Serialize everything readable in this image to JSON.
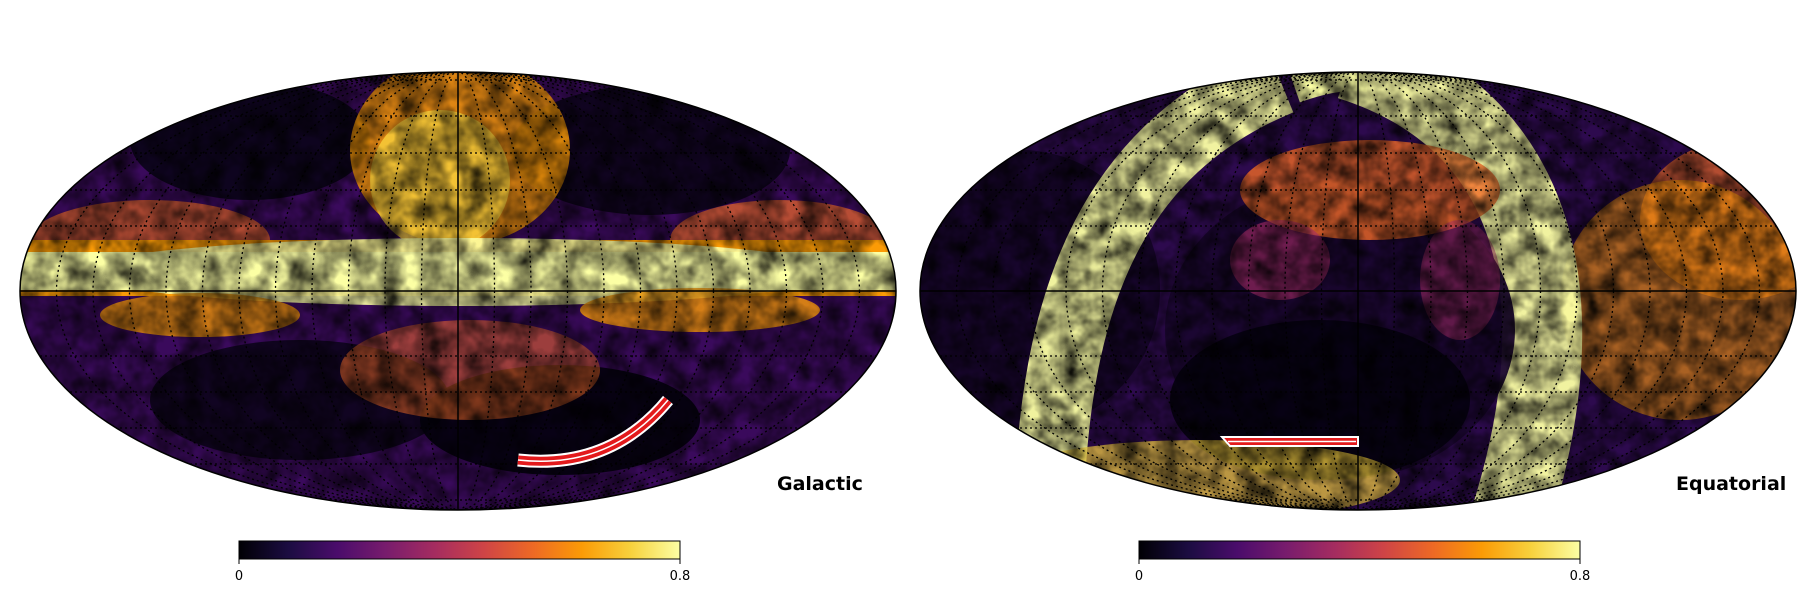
{
  "maps": [
    {
      "coordinate_system": "Galactic",
      "colorbar": {
        "min_label": "0",
        "max_label": "0.8"
      }
    },
    {
      "coordinate_system": "Equatorial",
      "colorbar": {
        "min_label": "0",
        "max_label": "0.8"
      }
    }
  ],
  "colormap": "inferno",
  "colormap_stops": [
    "#000004",
    "#1b0c41",
    "#4a0c6b",
    "#781c6d",
    "#a52c60",
    "#cf4446",
    "#ed6925",
    "#fb9b06",
    "#f7d13d",
    "#fcffa4"
  ],
  "value_range": [
    0,
    0.8
  ],
  "projection": "mollweide",
  "region_outline_color": "#e31a1c"
}
